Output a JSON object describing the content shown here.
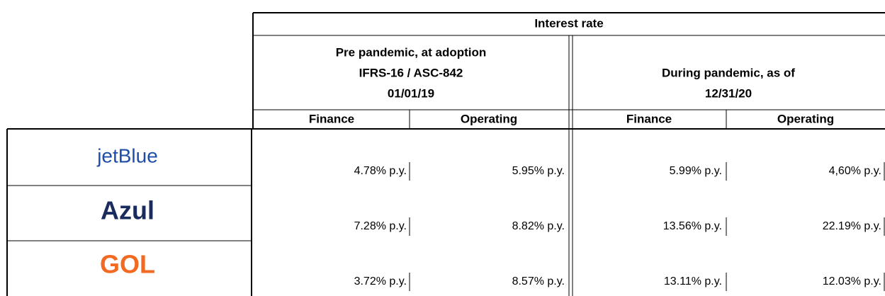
{
  "header": {
    "title": "Interest rate",
    "groups": [
      {
        "lines": [
          "Pre pandemic,  at adoption",
          "IFRS-16 / ASC-842",
          "01/01/19"
        ]
      },
      {
        "lines": [
          "During pandemic, as of",
          "12/31/20"
        ]
      }
    ],
    "columns": [
      "Finance",
      "Operating",
      "Finance",
      "Operating"
    ]
  },
  "rows": [
    {
      "airline": "jetBlue",
      "values": [
        "4.78% p.y.",
        "5.95% p.y.",
        "5.99% p.y.",
        "4,60% p.y."
      ]
    },
    {
      "airline": "Azul",
      "values": [
        "7.28% p.y.",
        "8.82% p.y.",
        "13.56% p.y.",
        "22.19% p.y."
      ]
    },
    {
      "airline": "GOL",
      "values": [
        "3.72% p.y.",
        "8.57% p.y.",
        "13.11% p.y.",
        "12.03% p.y."
      ]
    }
  ]
}
